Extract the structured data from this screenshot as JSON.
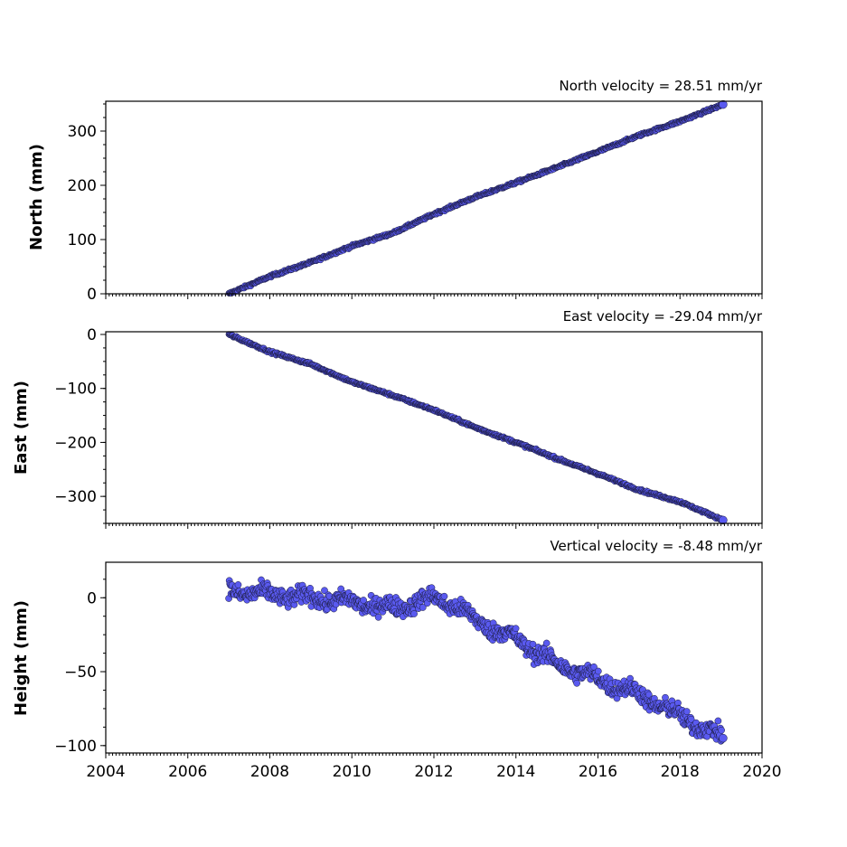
{
  "chart_data": [
    {
      "type": "scatter",
      "panel": "north",
      "annotation": "North velocity = 28.51 mm/yr",
      "ylabel": "North (mm)",
      "xlabel": "",
      "xlim": [
        2004,
        2020
      ],
      "ylim": [
        0,
        355
      ],
      "yticks": [
        0,
        100,
        200,
        300
      ],
      "ytick_labels": [
        "0",
        "100",
        "200",
        "300"
      ],
      "xtick_labels": [],
      "start_year": 2007.0,
      "end_year": 2019.05,
      "start_value": 0,
      "end_value": 349,
      "noise_mm": 2,
      "series": [
        {
          "name": "",
          "x": [
            2007.0,
            2008.0,
            2009.0,
            2010.0,
            2011.0,
            2012.0,
            2013.0,
            2014.0,
            2015.0,
            2016.0,
            2017.0,
            2018.0,
            2019.05
          ],
          "y": [
            0,
            32,
            58,
            88,
            112,
            147,
            178,
            205,
            233,
            262,
            292,
            318,
            349
          ]
        }
      ]
    },
    {
      "type": "scatter",
      "panel": "east",
      "annotation": "East velocity = -29.04 mm/yr",
      "ylabel": "East (mm)",
      "xlabel": "",
      "xlim": [
        2004,
        2020
      ],
      "ylim": [
        -350,
        5
      ],
      "yticks": [
        0,
        -100,
        -200,
        -300
      ],
      "ytick_labels": [
        "0",
        "−100",
        "−200",
        "−300"
      ],
      "xtick_labels": [],
      "start_year": 2007.0,
      "end_year": 2019.05,
      "start_value": 0,
      "end_value": -344,
      "noise_mm": 2,
      "series": [
        {
          "name": "",
          "x": [
            2007.0,
            2008.0,
            2009.0,
            2010.0,
            2011.0,
            2012.0,
            2013.0,
            2014.0,
            2015.0,
            2016.0,
            2017.0,
            2018.0,
            2019.05
          ],
          "y": [
            0,
            -32,
            -55,
            -88,
            -113,
            -140,
            -172,
            -200,
            -230,
            -258,
            -288,
            -310,
            -344
          ]
        }
      ]
    },
    {
      "type": "scatter",
      "panel": "vertical",
      "annotation": "Vertical velocity = -8.48 mm/yr",
      "ylabel": "Height (mm)",
      "xlabel": "",
      "xlim": [
        2004,
        2020
      ],
      "ylim": [
        -105,
        24
      ],
      "yticks": [
        0,
        -50,
        -100
      ],
      "ytick_labels": [
        "0",
        "−50",
        "−100"
      ],
      "xticks": [
        2004,
        2006,
        2008,
        2010,
        2012,
        2014,
        2016,
        2018,
        2020
      ],
      "xtick_labels": [
        "2004",
        "2006",
        "2008",
        "2010",
        "2012",
        "2014",
        "2016",
        "2018",
        "2020"
      ],
      "start_year": 2007.0,
      "end_year": 2019.05,
      "noise_mm": 5,
      "series": [
        {
          "name": "",
          "x": [
            2007.0,
            2008.0,
            2009.0,
            2010.0,
            2011.0,
            2012.0,
            2012.5,
            2013.0,
            2014.0,
            2015.0,
            2016.0,
            2017.0,
            2018.0,
            2019.05
          ],
          "y": [
            5,
            2,
            0,
            -3,
            -7,
            0,
            -5,
            -15,
            -28,
            -45,
            -55,
            -65,
            -80,
            -95
          ]
        }
      ]
    }
  ],
  "style": {
    "marker_fill": "#5a5af0",
    "marker_edge": "#1a1a3a",
    "axis_color": "#000000"
  }
}
